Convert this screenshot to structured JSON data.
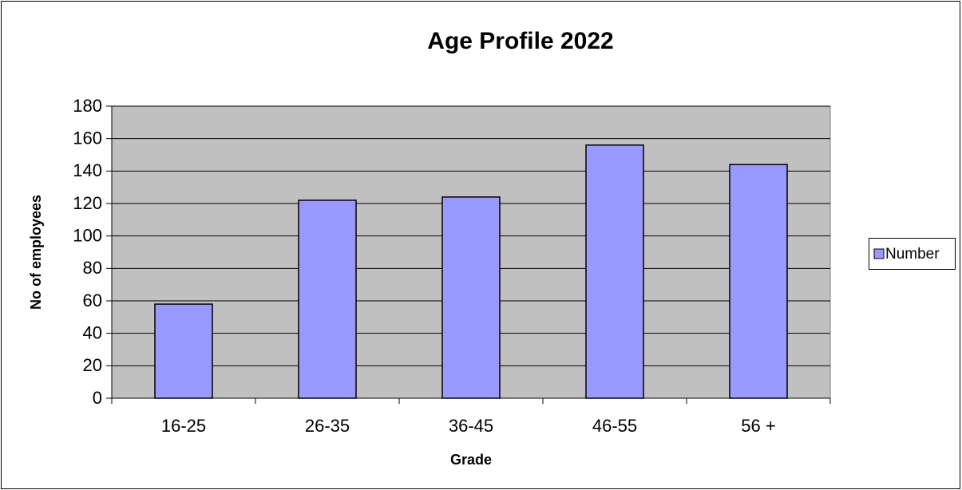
{
  "chart_data": {
    "type": "bar",
    "title": "Age Profile 2022",
    "x_label": "Grade",
    "y_label": "No of employees",
    "categories": [
      "16-25",
      "26-35",
      "36-45",
      "46-55",
      "56 +"
    ],
    "series": [
      {
        "name": "Number",
        "color": "#9999ff",
        "values": [
          58,
          122,
          124,
          156,
          144
        ]
      }
    ],
    "ylim": [
      0,
      180
    ],
    "yticks": [
      0,
      20,
      40,
      60,
      80,
      100,
      120,
      140,
      160,
      180
    ],
    "grid": true,
    "legend": "right",
    "plot_background": "#c0c0c0"
  }
}
